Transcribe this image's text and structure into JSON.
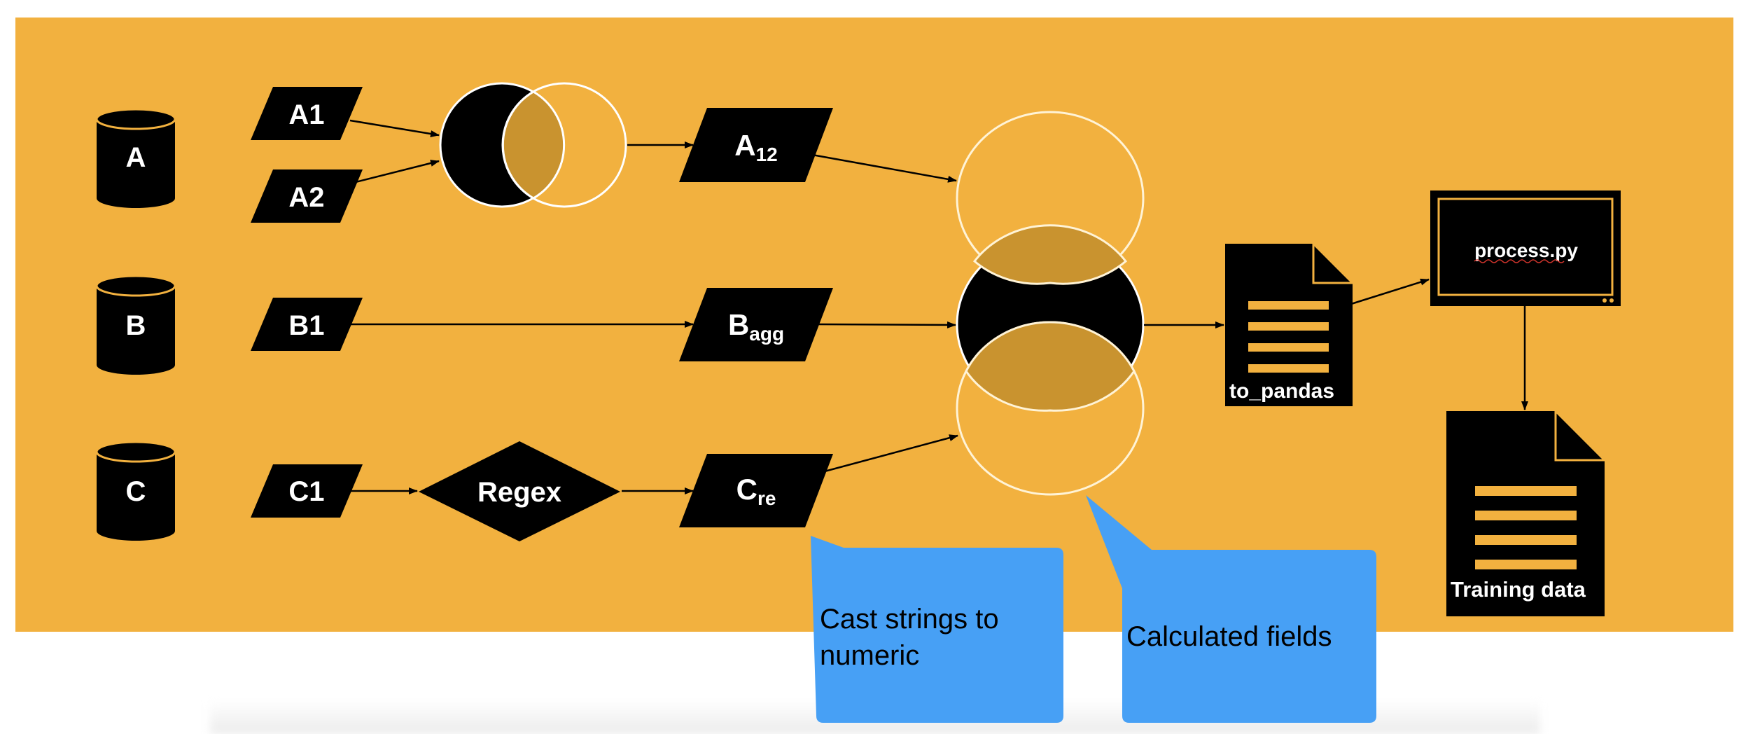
{
  "colors": {
    "panel": "#F2B13F",
    "shape": "#000000",
    "circle_stroke": "#FFFFFF",
    "overlap": "#C9932F",
    "callout": "#47A0F5"
  },
  "sources": {
    "a": "A",
    "b": "B",
    "c": "C"
  },
  "inputs": {
    "a1": "A1",
    "a2": "A2",
    "b1": "B1",
    "c1": "C1"
  },
  "regex": "Regex",
  "intermediates": {
    "a12": {
      "main": "A",
      "sub": "12"
    },
    "bagg": {
      "main": "B",
      "sub": "agg"
    },
    "cre": {
      "main": "C",
      "sub": "re"
    }
  },
  "outputs": {
    "to_pandas": "to_pandas",
    "process": "process.py",
    "training": "Training data"
  },
  "callouts": {
    "cast_line1": "Cast strings to",
    "cast_line2": "numeric",
    "calculated": "Calculated fields"
  },
  "icons": [
    "database-icon",
    "document-icon",
    "monitor-icon"
  ]
}
